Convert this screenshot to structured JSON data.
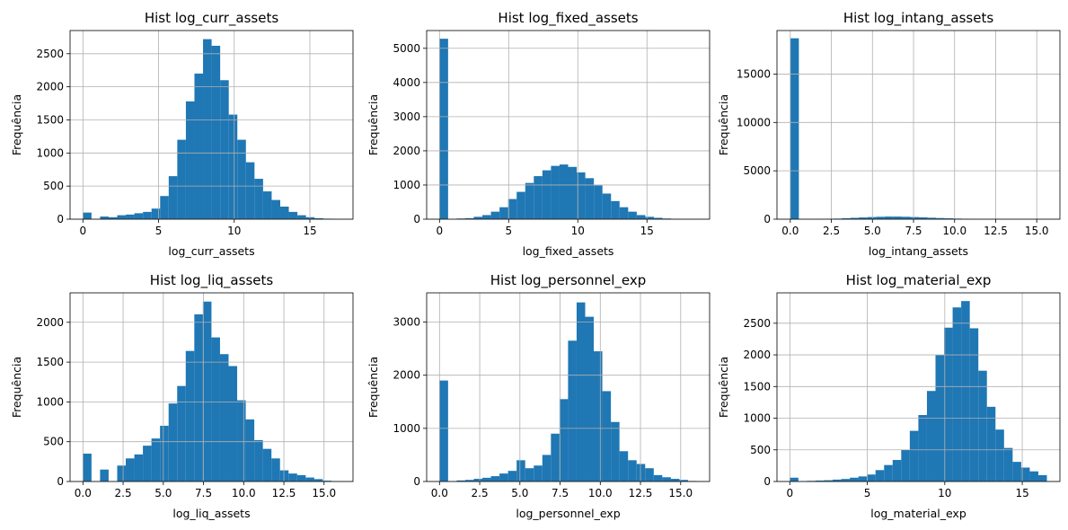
{
  "figure": {
    "background": "#ffffff"
  },
  "style": {
    "bar_color": "#1f77b4",
    "grid_color": "#b0b0b0",
    "axis_color": "#000000"
  },
  "chart_data": [
    {
      "type": "bar",
      "title": "Hist log_curr_assets",
      "xlabel": "log_curr_assets",
      "ylabel": "Frequência",
      "grid": true,
      "xlim": [
        -0.85,
        17.85
      ],
      "ylim": [
        0,
        2850
      ],
      "xticks": [
        0,
        5,
        10,
        15
      ],
      "xtick_labels": [
        "0",
        "5",
        "10",
        "15"
      ],
      "yticks": [
        0,
        500,
        1000,
        1500,
        2000,
        2500
      ],
      "ytick_labels": [
        "0",
        "500",
        "1000",
        "1500",
        "2000",
        "2500"
      ],
      "bins": {
        "start": 0.0,
        "width": 0.567
      },
      "values": [
        100,
        0,
        40,
        30,
        60,
        70,
        90,
        110,
        160,
        350,
        650,
        1200,
        1780,
        2200,
        2720,
        2620,
        2100,
        1580,
        1200,
        860,
        610,
        420,
        290,
        190,
        110,
        60,
        30,
        15,
        8,
        5
      ]
    },
    {
      "type": "bar",
      "title": "Hist log_fixed_assets",
      "xlabel": "log_fixed_assets",
      "ylabel": "Frequência",
      "grid": true,
      "xlim": [
        -0.93,
        19.53
      ],
      "ylim": [
        0,
        5520
      ],
      "xticks": [
        0,
        5,
        10,
        15
      ],
      "xtick_labels": [
        "0",
        "5",
        "10",
        "15"
      ],
      "yticks": [
        0,
        1000,
        2000,
        3000,
        4000,
        5000
      ],
      "ytick_labels": [
        "0",
        "1000",
        "2000",
        "3000",
        "4000",
        "5000"
      ],
      "bins": {
        "start": 0.0,
        "width": 0.62
      },
      "values": [
        5280,
        0,
        20,
        30,
        70,
        120,
        220,
        350,
        590,
        800,
        1060,
        1260,
        1430,
        1560,
        1600,
        1530,
        1370,
        1200,
        990,
        750,
        530,
        350,
        220,
        120,
        70,
        40,
        20,
        10,
        5,
        3
      ]
    },
    {
      "type": "bar",
      "title": "Hist log_intang_assets",
      "xlabel": "log_intang_assets",
      "ylabel": "Frequência",
      "grid": true,
      "xlim": [
        -0.81,
        16.41
      ],
      "ylim": [
        0,
        19500
      ],
      "xticks": [
        0,
        2.5,
        5,
        7.5,
        10,
        12.5,
        15
      ],
      "xtick_labels": [
        "0.0",
        "2.5",
        "5.0",
        "7.5",
        "10.0",
        "12.5",
        "15.0"
      ],
      "yticks": [
        0,
        5000,
        10000,
        15000
      ],
      "ytick_labels": [
        "0",
        "5000",
        "10000",
        "15000"
      ],
      "bins": {
        "start": 0.0,
        "width": 0.522
      },
      "values": [
        18700,
        0,
        10,
        20,
        40,
        60,
        100,
        140,
        180,
        220,
        250,
        270,
        270,
        250,
        220,
        190,
        150,
        120,
        90,
        60,
        40,
        25,
        15,
        8,
        5,
        3,
        2,
        1,
        1,
        1
      ]
    },
    {
      "type": "bar",
      "title": "Hist log_liq_assets",
      "xlabel": "log_liq_assets",
      "ylabel": "Frequência",
      "grid": true,
      "xlim": [
        -0.8,
        16.8
      ],
      "ylim": [
        0,
        2370
      ],
      "xticks": [
        0,
        2.5,
        5,
        7.5,
        10,
        12.5,
        15
      ],
      "xtick_labels": [
        "0.0",
        "2.5",
        "5.0",
        "7.5",
        "10.0",
        "12.5",
        "15.0"
      ],
      "yticks": [
        0,
        500,
        1000,
        1500,
        2000
      ],
      "ytick_labels": [
        "0",
        "500",
        "1000",
        "1500",
        "2000"
      ],
      "bins": {
        "start": 0.0,
        "width": 0.533
      },
      "values": [
        350,
        0,
        150,
        0,
        200,
        290,
        340,
        450,
        540,
        700,
        980,
        1200,
        1640,
        2100,
        2260,
        1810,
        1600,
        1450,
        1020,
        780,
        520,
        410,
        290,
        140,
        100,
        80,
        50,
        30,
        10,
        5
      ]
    },
    {
      "type": "bar",
      "title": "Hist log_personnel_exp",
      "xlabel": "log_personnel_exp",
      "ylabel": "Frequência",
      "grid": true,
      "xlim": [
        -0.8,
        16.8
      ],
      "ylim": [
        0,
        3550
      ],
      "xticks": [
        0,
        2.5,
        5,
        7.5,
        10,
        12.5,
        15
      ],
      "xtick_labels": [
        "0.0",
        "2.5",
        "5.0",
        "7.5",
        "10.0",
        "12.5",
        "15.0"
      ],
      "yticks": [
        0,
        1000,
        2000,
        3000
      ],
      "ytick_labels": [
        "0",
        "1000",
        "2000",
        "3000"
      ],
      "bins": {
        "start": 0.0,
        "width": 0.533
      },
      "values": [
        1900,
        0,
        20,
        30,
        50,
        70,
        100,
        150,
        200,
        400,
        250,
        300,
        500,
        900,
        1550,
        2650,
        3370,
        3100,
        2450,
        1700,
        1120,
        570,
        400,
        330,
        250,
        120,
        80,
        50,
        30,
        10
      ]
    },
    {
      "type": "bar",
      "title": "Hist log_material_exp",
      "xlabel": "log_material_exp",
      "ylabel": "Frequência",
      "grid": true,
      "xlim": [
        -0.83,
        17.43
      ],
      "ylim": [
        0,
        2980
      ],
      "xticks": [
        0,
        5,
        10,
        15
      ],
      "xtick_labels": [
        "0",
        "5",
        "10",
        "15"
      ],
      "yticks": [
        0,
        500,
        1000,
        1500,
        2000,
        2500
      ],
      "ytick_labels": [
        "0",
        "500",
        "1000",
        "1500",
        "2000",
        "2500"
      ],
      "bins": {
        "start": 0.0,
        "width": 0.553
      },
      "values": [
        60,
        0,
        10,
        15,
        20,
        30,
        40,
        60,
        80,
        110,
        180,
        260,
        340,
        500,
        800,
        1050,
        1430,
        2000,
        2430,
        2750,
        2850,
        2420,
        1750,
        1180,
        820,
        530,
        310,
        220,
        160,
        100
      ]
    }
  ]
}
